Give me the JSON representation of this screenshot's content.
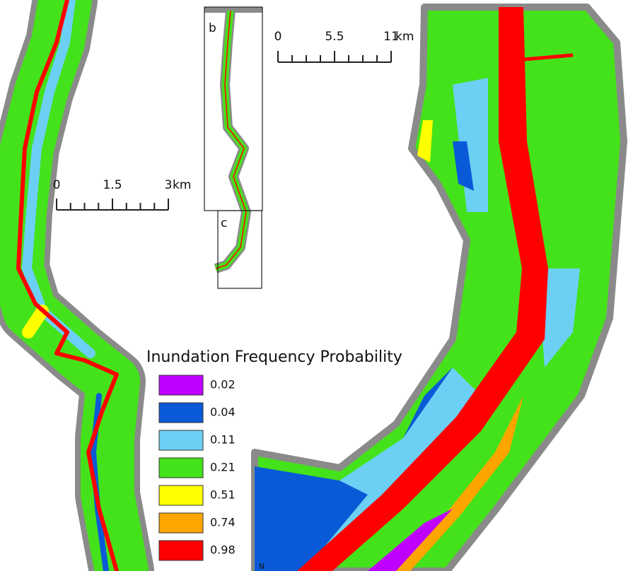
{
  "scale_bars": [
    {
      "labels": [
        "0",
        "1.5",
        "3"
      ],
      "unit": "km"
    },
    {
      "labels": [
        "0",
        "5.5",
        "11"
      ],
      "unit": "km"
    }
  ],
  "insets": [
    {
      "label": "b"
    },
    {
      "label": "c"
    }
  ],
  "legend": {
    "title": "Inundation Frequency Probability",
    "items": [
      {
        "label": "0.02",
        "color": "#c000ff"
      },
      {
        "label": "0.04",
        "color": "#0a5ad8"
      },
      {
        "label": "0.11",
        "color": "#6cd0f5"
      },
      {
        "label": "0.21",
        "color": "#44e21a"
      },
      {
        "label": "0.51",
        "color": "#ffff00"
      },
      {
        "label": "0.74",
        "color": "#ffa500"
      },
      {
        "label": "0.98",
        "color": "#ff0000"
      }
    ]
  },
  "north_label": "N"
}
